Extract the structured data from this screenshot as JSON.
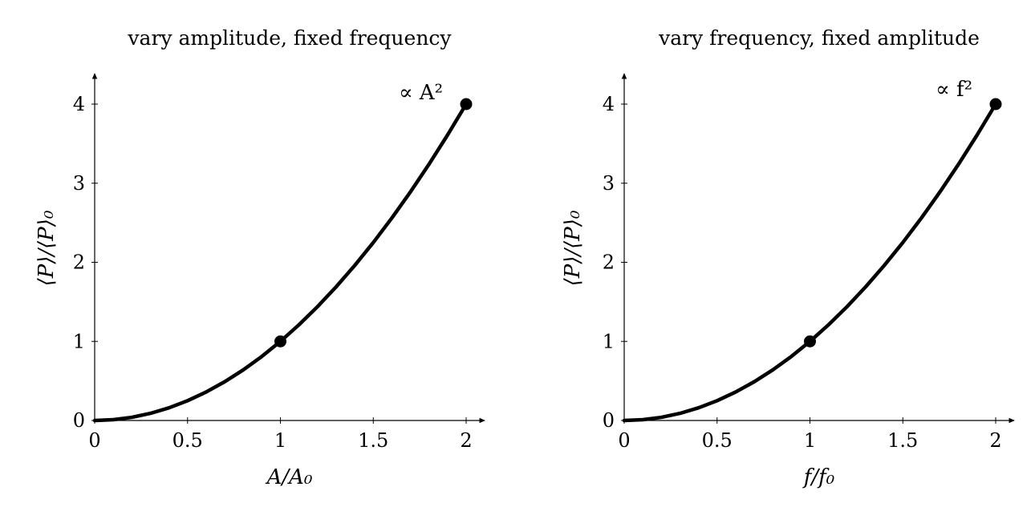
{
  "chart_data": [
    {
      "type": "line",
      "title": "vary amplitude, fixed frequency",
      "xlabel": "A/A₀",
      "ylabel": "⟨P⟩/⟨P⟩₀",
      "xlim": [
        0,
        2.1
      ],
      "ylim": [
        0,
        4.4
      ],
      "x_ticks": [
        "0",
        "0.5",
        "1",
        "1.5",
        "2"
      ],
      "y_ticks": [
        "0",
        "1",
        "2",
        "3",
        "4"
      ],
      "grid": false,
      "annotation": "∝ A²",
      "series": [
        {
          "x": [
            0,
            0.1,
            0.2,
            0.3,
            0.4,
            0.5,
            0.6,
            0.7,
            0.8,
            0.9,
            1.0,
            1.1,
            1.2,
            1.3,
            1.4,
            1.5,
            1.6,
            1.7,
            1.8,
            1.9,
            2.0
          ],
          "y": [
            0,
            0.01,
            0.04,
            0.09,
            0.16,
            0.25,
            0.36,
            0.49,
            0.64,
            0.81,
            1.0,
            1.21,
            1.44,
            1.69,
            1.96,
            2.25,
            2.56,
            2.89,
            3.24,
            3.61,
            4.0
          ]
        }
      ],
      "markers": [
        {
          "x": 1,
          "y": 1
        },
        {
          "x": 2,
          "y": 4
        }
      ]
    },
    {
      "type": "line",
      "title": "vary frequency, fixed amplitude",
      "xlabel": "f/f₀",
      "ylabel": "⟨P⟩/⟨P⟩₀",
      "xlim": [
        0,
        2.1
      ],
      "ylim": [
        0,
        4.4
      ],
      "x_ticks": [
        "0",
        "0.5",
        "1",
        "1.5",
        "2"
      ],
      "y_ticks": [
        "0",
        "1",
        "2",
        "3",
        "4"
      ],
      "grid": false,
      "annotation": "∝ f²",
      "series": [
        {
          "x": [
            0,
            0.1,
            0.2,
            0.3,
            0.4,
            0.5,
            0.6,
            0.7,
            0.8,
            0.9,
            1.0,
            1.1,
            1.2,
            1.3,
            1.4,
            1.5,
            1.6,
            1.7,
            1.8,
            1.9,
            2.0
          ],
          "y": [
            0,
            0.01,
            0.04,
            0.09,
            0.16,
            0.25,
            0.36,
            0.49,
            0.64,
            0.81,
            1.0,
            1.21,
            1.44,
            1.69,
            1.96,
            2.25,
            2.56,
            2.89,
            3.24,
            3.61,
            4.0
          ]
        }
      ],
      "markers": [
        {
          "x": 1,
          "y": 1
        },
        {
          "x": 2,
          "y": 4
        }
      ]
    }
  ]
}
